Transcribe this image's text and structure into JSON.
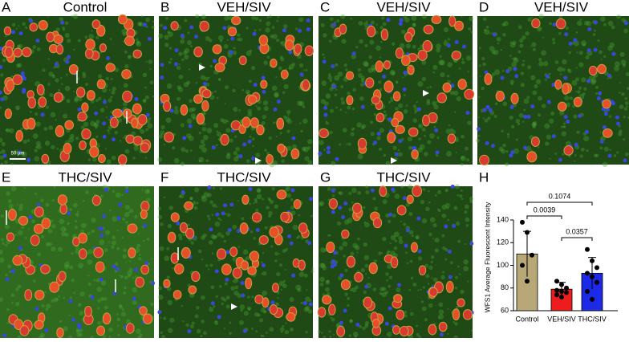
{
  "panels": [
    {
      "letter": "A",
      "title": "Control"
    },
    {
      "letter": "B",
      "title": "VEH/SIV"
    },
    {
      "letter": "C",
      "title": "VEH/SIV"
    },
    {
      "letter": "D",
      "title": "VEH/SIV"
    },
    {
      "letter": "E",
      "title": "THC/SIV"
    },
    {
      "letter": "F",
      "title": "THC/SIV"
    },
    {
      "letter": "G",
      "title": "THC/SIV"
    }
  ],
  "scale_bar": "50 µm",
  "chart_letter": "H",
  "chart_data": {
    "type": "bar",
    "ylabel": "WFS1 Average Fluorescent Intensity",
    "categories": [
      "Control",
      "VEH/SIV",
      "THC/SIV"
    ],
    "values": [
      110,
      79,
      93
    ],
    "errors": [
      20,
      6,
      14
    ],
    "colors": [
      "#b8a878",
      "#ee1c1c",
      "#1c2ae8"
    ],
    "points": [
      [
        138,
        129,
        109,
        100,
        86
      ],
      [
        86,
        83,
        80,
        78,
        77,
        76,
        74,
        72
      ],
      [
        114,
        104,
        98,
        93,
        90,
        85,
        77,
        70
      ]
    ],
    "comparisons": [
      "0.1074",
      "0.0039",
      "0.0357"
    ],
    "ylim": [
      60,
      140
    ],
    "yticks": [
      60,
      80,
      100,
      120,
      140
    ]
  }
}
